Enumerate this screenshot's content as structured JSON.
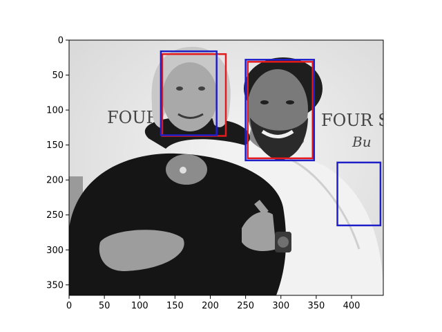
{
  "figure": {
    "image_width": 445,
    "image_height": 365,
    "x_ticks": [
      0,
      50,
      100,
      150,
      200,
      250,
      300,
      350,
      400
    ],
    "y_ticks": [
      0,
      50,
      100,
      150,
      200,
      250,
      300,
      350
    ]
  },
  "photo": {
    "backdrop_text": [
      {
        "text": "FOUR",
        "x": 155,
        "y": 178
      },
      {
        "text": "FOUR S",
        "x": 465,
        "y": 182
      },
      {
        "text": "Bu",
        "x": 510,
        "y": 212
      }
    ]
  },
  "boxes": [
    {
      "label": "red",
      "color": "#e41a1c",
      "x1": 132,
      "y1": 20,
      "x2": 222,
      "y2": 137
    },
    {
      "label": "red",
      "color": "#e41a1c",
      "x1": 253,
      "y1": 31,
      "x2": 345,
      "y2": 169
    },
    {
      "label": "blue",
      "color": "#1f1fc8",
      "x1": 130,
      "y1": 16,
      "x2": 209,
      "y2": 136
    },
    {
      "label": "blue",
      "color": "#1f1fc8",
      "x1": 250,
      "y1": 28,
      "x2": 347,
      "y2": 172
    },
    {
      "label": "blue",
      "color": "#1f1fc8",
      "x1": 380,
      "y1": 175,
      "x2": 441,
      "y2": 265
    }
  ]
}
